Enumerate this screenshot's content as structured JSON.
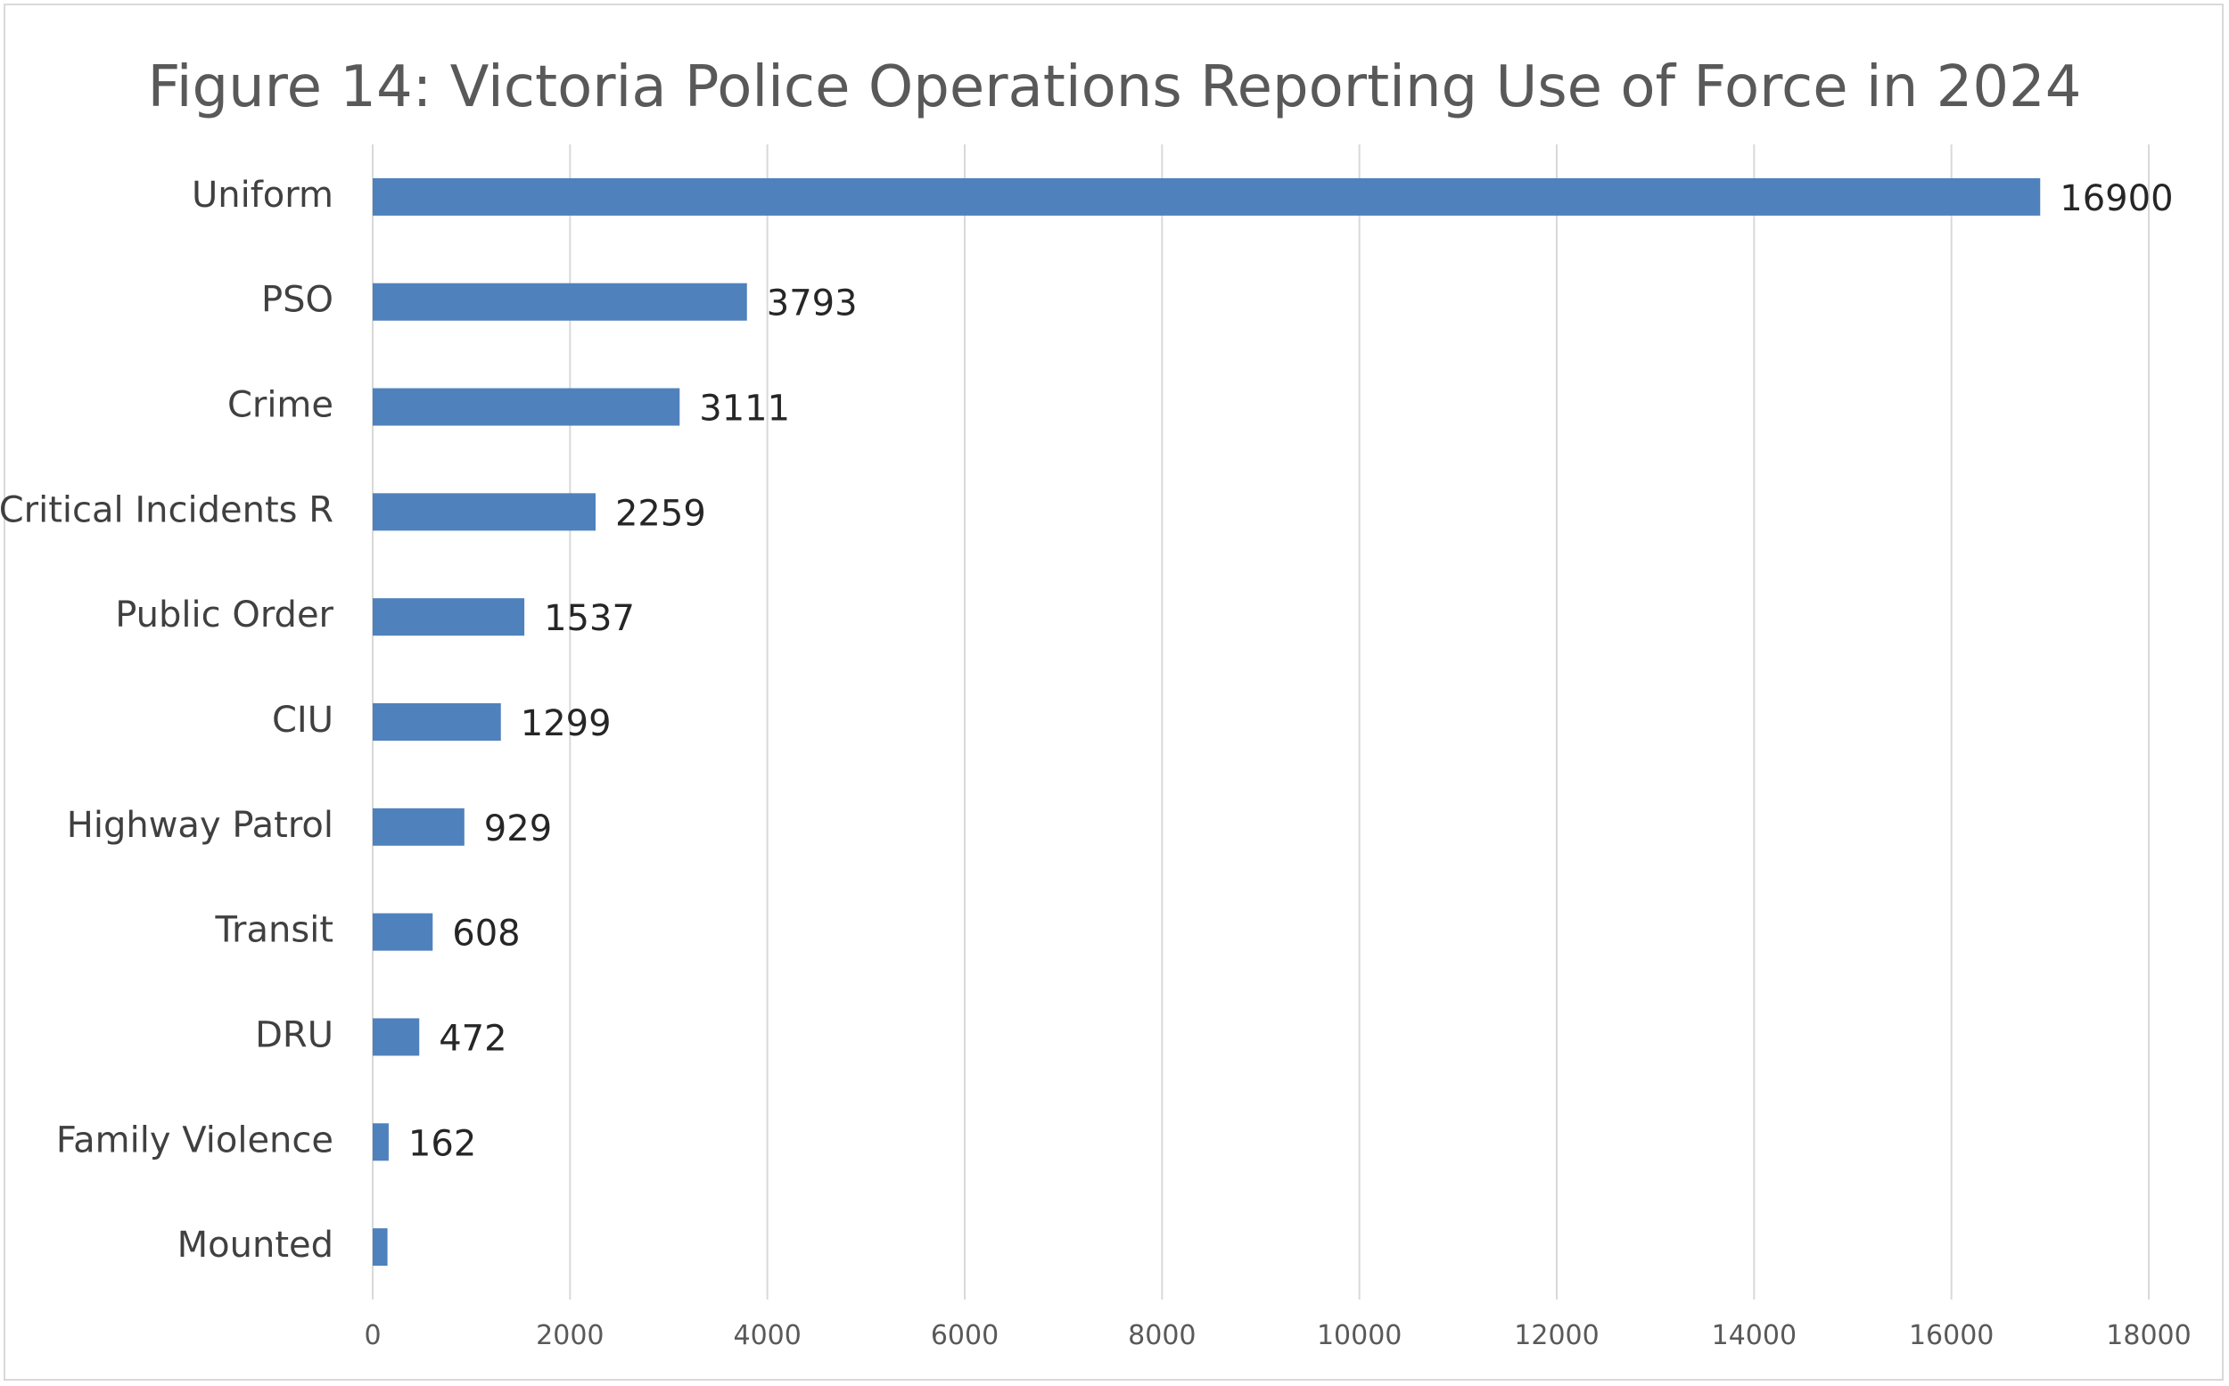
{
  "chart_data": {
    "type": "bar",
    "orientation": "horizontal",
    "title": "Figure 14: Victoria Police Operations Reporting Use of Force in 2024",
    "categories": [
      "Uniform",
      "PSO",
      "Crime",
      "Critical Incidents R",
      "Public Order",
      "CIU",
      "Highway Patrol",
      "Transit",
      "DRU",
      "Family Violence",
      "Mounted"
    ],
    "values": [
      16900,
      3793,
      3111,
      2259,
      1537,
      1299,
      929,
      608,
      472,
      162,
      150
    ],
    "data_labels": [
      "16900",
      "3793",
      "3111",
      "2259",
      "1537",
      "1299",
      "929",
      "608",
      "472",
      "162",
      ""
    ],
    "xlim": [
      0,
      18000
    ],
    "xticks": [
      0,
      2000,
      4000,
      6000,
      8000,
      10000,
      12000,
      14000,
      16000,
      18000
    ],
    "xtick_labels": [
      "0",
      "2000",
      "4000",
      "6000",
      "8000",
      "10000",
      "12000",
      "14000",
      "16000",
      "18000"
    ],
    "grid": "vertical",
    "legend": "none",
    "bar_color": "#4f81bd",
    "grid_color": "#d9d9d9"
  }
}
